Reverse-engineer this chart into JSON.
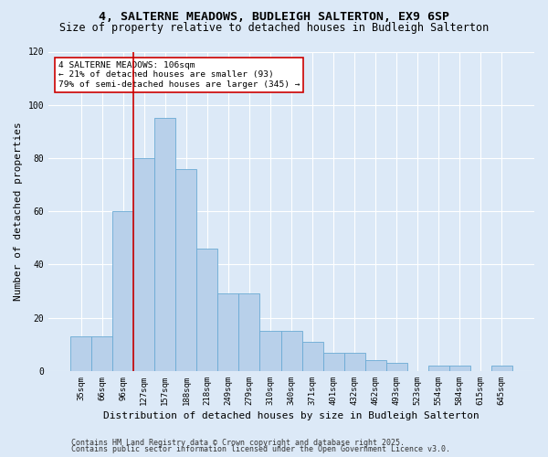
{
  "title": "4, SALTERNE MEADOWS, BUDLEIGH SALTERTON, EX9 6SP",
  "subtitle": "Size of property relative to detached houses in Budleigh Salterton",
  "xlabel": "Distribution of detached houses by size in Budleigh Salterton",
  "ylabel": "Number of detached properties",
  "footer1": "Contains HM Land Registry data © Crown copyright and database right 2025.",
  "footer2": "Contains public sector information licensed under the Open Government Licence v3.0.",
  "categories": [
    "35sqm",
    "66sqm",
    "96sqm",
    "127sqm",
    "157sqm",
    "188sqm",
    "218sqm",
    "249sqm",
    "279sqm",
    "310sqm",
    "340sqm",
    "371sqm",
    "401sqm",
    "432sqm",
    "462sqm",
    "493sqm",
    "523sqm",
    "554sqm",
    "584sqm",
    "615sqm",
    "645sqm"
  ],
  "bar_values": [
    13,
    13,
    60,
    80,
    95,
    76,
    46,
    29,
    29,
    15,
    15,
    11,
    7,
    7,
    4,
    3,
    0,
    2,
    2,
    0,
    2
  ],
  "bar_color": "#b8d0ea",
  "bar_edge_color": "#6aaad4",
  "vline_x": 2.5,
  "vline_color": "#cc0000",
  "annotation_text": "4 SALTERNE MEADOWS: 106sqm\n← 21% of detached houses are smaller (93)\n79% of semi-detached houses are larger (345) →",
  "annotation_box_color": "#ffffff",
  "annotation_box_edge": "#cc0000",
  "ylim": [
    0,
    120
  ],
  "yticks": [
    0,
    20,
    40,
    60,
    80,
    100,
    120
  ],
  "bg_color": "#dce9f7",
  "fig_color": "#dce9f7",
  "title_fontsize": 9.5,
  "subtitle_fontsize": 8.5,
  "label_fontsize": 8,
  "tick_fontsize": 6.5,
  "footer_fontsize": 6
}
